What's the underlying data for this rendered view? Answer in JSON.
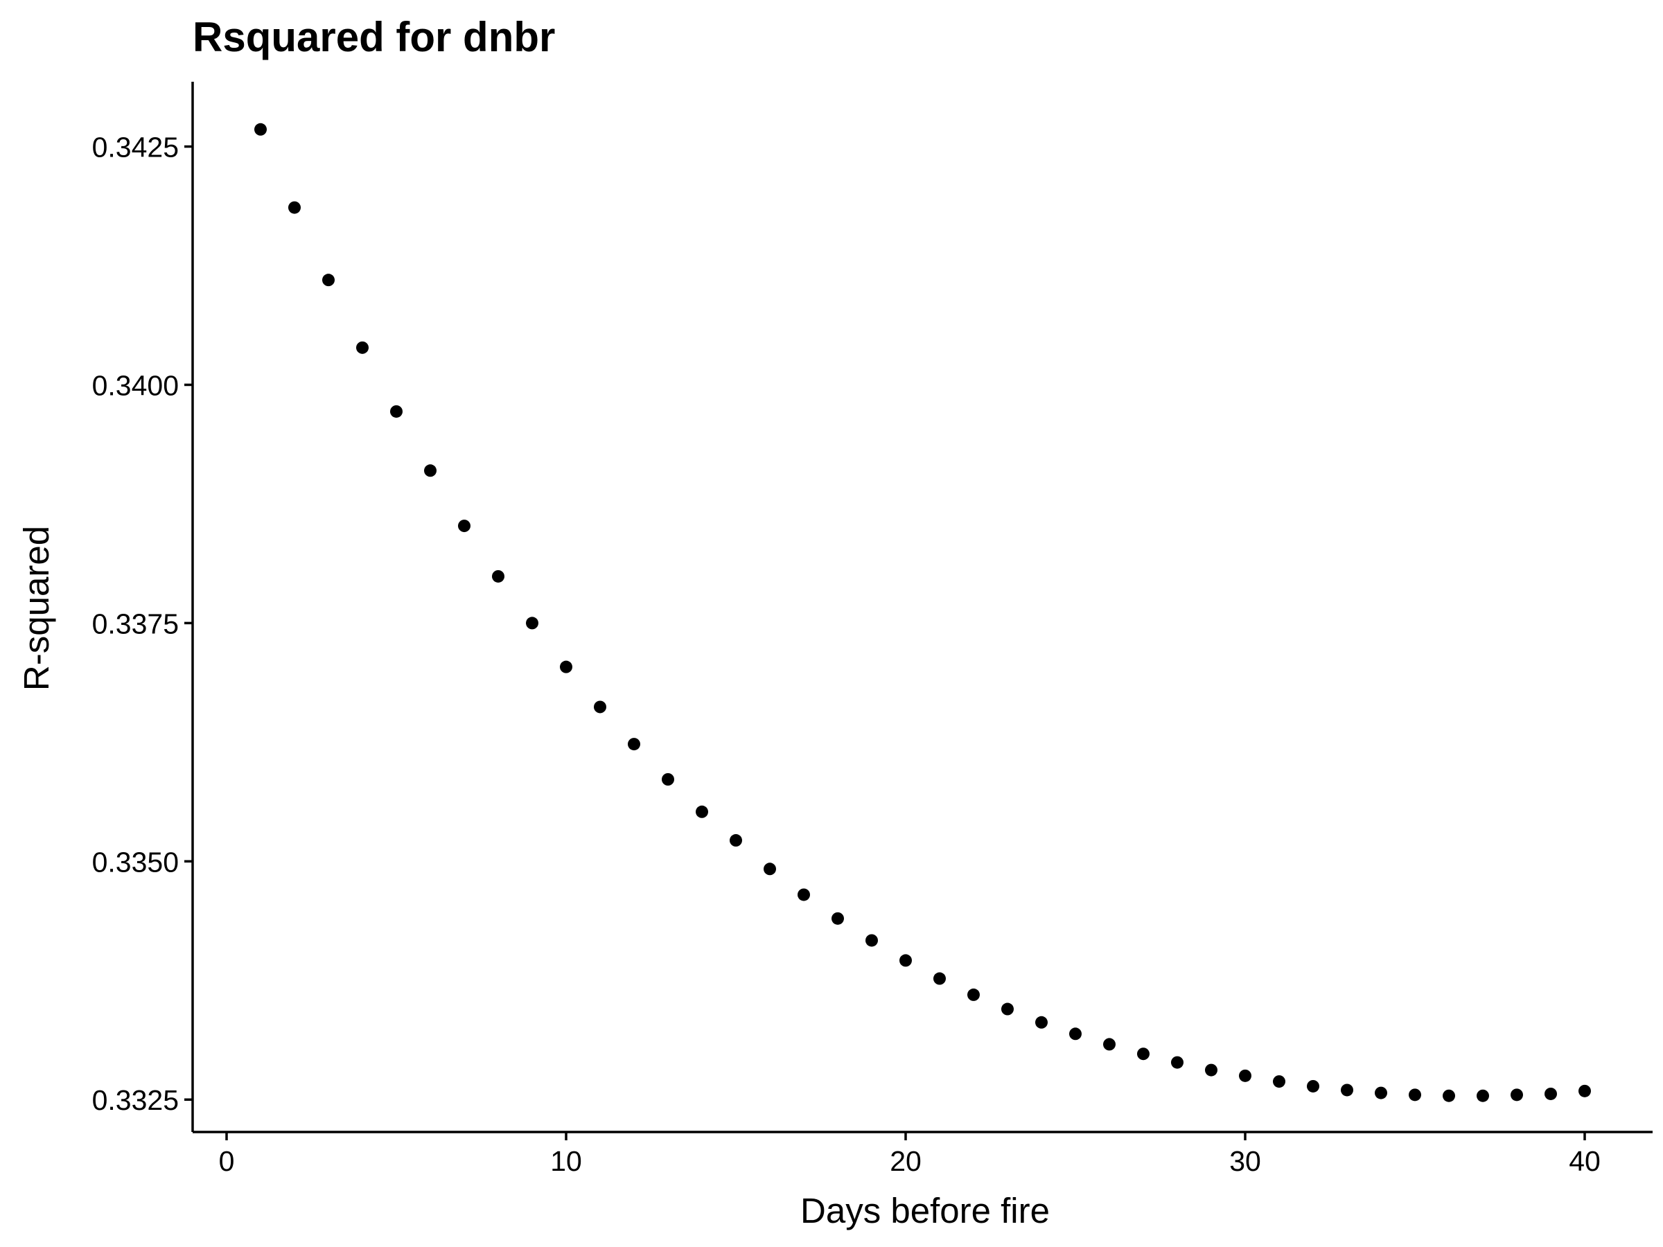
{
  "chart_data": {
    "type": "scatter",
    "title": "Rsquared for dnbr",
    "xlabel": "Days before fire",
    "ylabel": "R-squared",
    "xlim": [
      -1,
      42
    ],
    "ylim": [
      0.33216,
      0.34318
    ],
    "x_ticks": [
      0,
      10,
      20,
      30,
      40
    ],
    "x_tick_labels": [
      "0",
      "10",
      "20",
      "30",
      "40"
    ],
    "y_ticks": [
      0.3325,
      0.335,
      0.3375,
      0.34,
      0.3425
    ],
    "y_tick_labels": [
      "0.3325",
      "0.3350",
      "0.3375",
      "0.3400",
      "0.3425"
    ],
    "grid": false,
    "legend": "none",
    "point_color": "#000000",
    "x": [
      1,
      2,
      3,
      4,
      5,
      6,
      7,
      8,
      9,
      10,
      11,
      12,
      13,
      14,
      15,
      16,
      17,
      18,
      19,
      20,
      21,
      22,
      23,
      24,
      25,
      26,
      27,
      28,
      29,
      30,
      31,
      32,
      33,
      34,
      35,
      36,
      37,
      38,
      39,
      40
    ],
    "y": [
      0.34268,
      0.34186,
      0.3411,
      0.34039,
      0.33972,
      0.3391,
      0.33852,
      0.33799,
      0.3375,
      0.33704,
      0.33662,
      0.33623,
      0.33586,
      0.33552,
      0.33522,
      0.33492,
      0.33465,
      0.3344,
      0.33417,
      0.33396,
      0.33377,
      0.3336,
      0.33345,
      0.33331,
      0.33319,
      0.33308,
      0.33298,
      0.33289,
      0.33281,
      0.33275,
      0.33269,
      0.33264,
      0.3326,
      0.33257,
      0.33255,
      0.33254,
      0.33254,
      0.33255,
      0.33256,
      0.33259
    ]
  }
}
